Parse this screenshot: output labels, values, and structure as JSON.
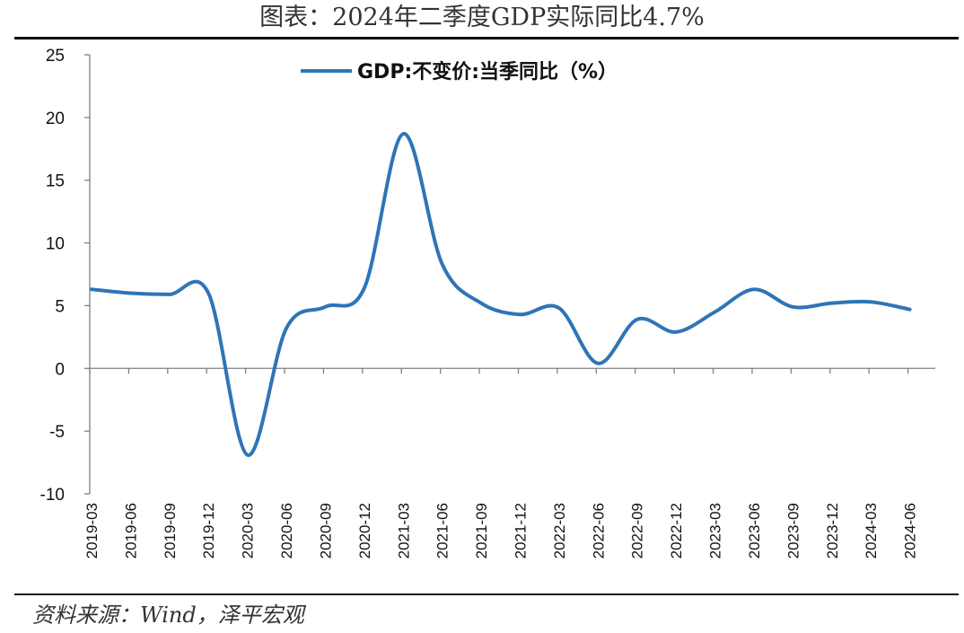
{
  "title": "图表：2024年二季度GDP实际同比4.7%",
  "source": "资料来源：Wind，泽平宏观",
  "colors": {
    "series": "#2E75B6",
    "axis": "#808080",
    "rule": "#111111"
  },
  "chart_data": {
    "type": "line",
    "title": "图表：2024年二季度GDP实际同比4.7%",
    "xlabel": "",
    "ylabel": "",
    "ylim": [
      -10,
      25
    ],
    "yticks": [
      -10,
      -5,
      0,
      5,
      10,
      15,
      20,
      25
    ],
    "grid": false,
    "legend_position": "top-center",
    "categories": [
      "2019-03",
      "2019-06",
      "2019-09",
      "2019-12",
      "2020-03",
      "2020-06",
      "2020-09",
      "2020-12",
      "2021-03",
      "2021-06",
      "2021-09",
      "2021-12",
      "2022-03",
      "2022-06",
      "2022-09",
      "2022-12",
      "2023-03",
      "2023-06",
      "2023-09",
      "2023-12",
      "2024-03",
      "2024-06"
    ],
    "series": [
      {
        "name": "GDP:不变价:当季同比（%）",
        "values": [
          6.3,
          6.0,
          5.9,
          6.0,
          -6.9,
          3.2,
          4.9,
          6.4,
          18.7,
          8.3,
          5.2,
          4.3,
          4.8,
          0.4,
          3.9,
          2.9,
          4.5,
          6.3,
          4.9,
          5.2,
          5.3,
          4.7
        ]
      }
    ]
  }
}
